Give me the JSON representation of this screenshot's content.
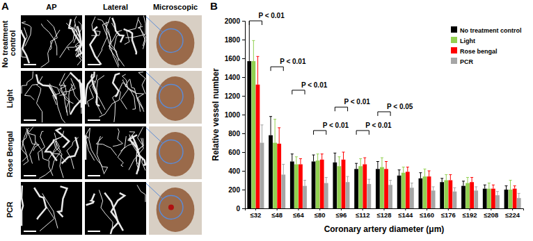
{
  "panel_a": {
    "label": "A",
    "columns": [
      "AP",
      "Lateral",
      "Microscopic"
    ],
    "rows": [
      "No treatment control",
      "Light",
      "Rose Bengal",
      "PCR"
    ]
  },
  "panel_b": {
    "label": "B"
  },
  "chart_data": {
    "type": "bar",
    "x_label": "Coronary artery diameter (μm)",
    "y_label": "Relative vessel number",
    "categories": [
      "≤32",
      "≤48",
      "≤64",
      "≤80",
      "≤96",
      "≤112",
      "≤128",
      "≤144",
      "≤160",
      "≤176",
      "≤192",
      "≤208",
      "≤224"
    ],
    "series": [
      {
        "name": "No treatment control",
        "color": "#000000",
        "values": [
          1570,
          780,
          500,
          500,
          490,
          420,
          420,
          350,
          320,
          280,
          240,
          210,
          200
        ],
        "errors": [
          440,
          200,
          80,
          70,
          100,
          60,
          80,
          60,
          60,
          40,
          50,
          40,
          40
        ]
      },
      {
        "name": "Light",
        "color": "#92d050",
        "values": [
          1570,
          700,
          470,
          510,
          450,
          450,
          440,
          380,
          340,
          300,
          270,
          210,
          200
        ],
        "errors": [
          220,
          250,
          80,
          70,
          100,
          80,
          100,
          60,
          80,
          60,
          60,
          60,
          100
        ]
      },
      {
        "name": "Rose bengal",
        "color": "#ff0000",
        "values": [
          1320,
          690,
          470,
          520,
          520,
          470,
          420,
          390,
          340,
          300,
          280,
          210,
          210
        ],
        "errors": [
          300,
          170,
          60,
          60,
          80,
          70,
          80,
          50,
          60,
          60,
          50,
          40,
          30
        ]
      },
      {
        "name": "PCR",
        "color": "#a6a6a6",
        "values": [
          700,
          360,
          240,
          270,
          280,
          260,
          250,
          220,
          190,
          180,
          190,
          140,
          110
        ],
        "errors": [
          190,
          110,
          60,
          60,
          60,
          50,
          50,
          50,
          40,
          40,
          40,
          40,
          50
        ]
      }
    ],
    "annotations": [
      {
        "text": "P < 0.01",
        "category": "≤32",
        "y": 2000
      },
      {
        "text": "P < 0.01",
        "category": "≤48",
        "y": 1510
      },
      {
        "text": "P < 0.01",
        "category": "≤64",
        "y": 1260
      },
      {
        "text": "P < 0.01",
        "category": "≤80",
        "y": 830
      },
      {
        "text": "P < 0.01",
        "category": "≤96",
        "y": 1080
      },
      {
        "text": "P < 0.01",
        "category": "≤112",
        "y": 830
      },
      {
        "text": "P < 0.05",
        "category": "≤128",
        "y": 1030
      }
    ],
    "ylim": [
      0,
      2000
    ],
    "yticks": [
      0,
      200,
      400,
      600,
      800,
      1000,
      1200,
      1400,
      1600,
      1800,
      2000
    ],
    "grid": false,
    "legend": "upper right"
  }
}
